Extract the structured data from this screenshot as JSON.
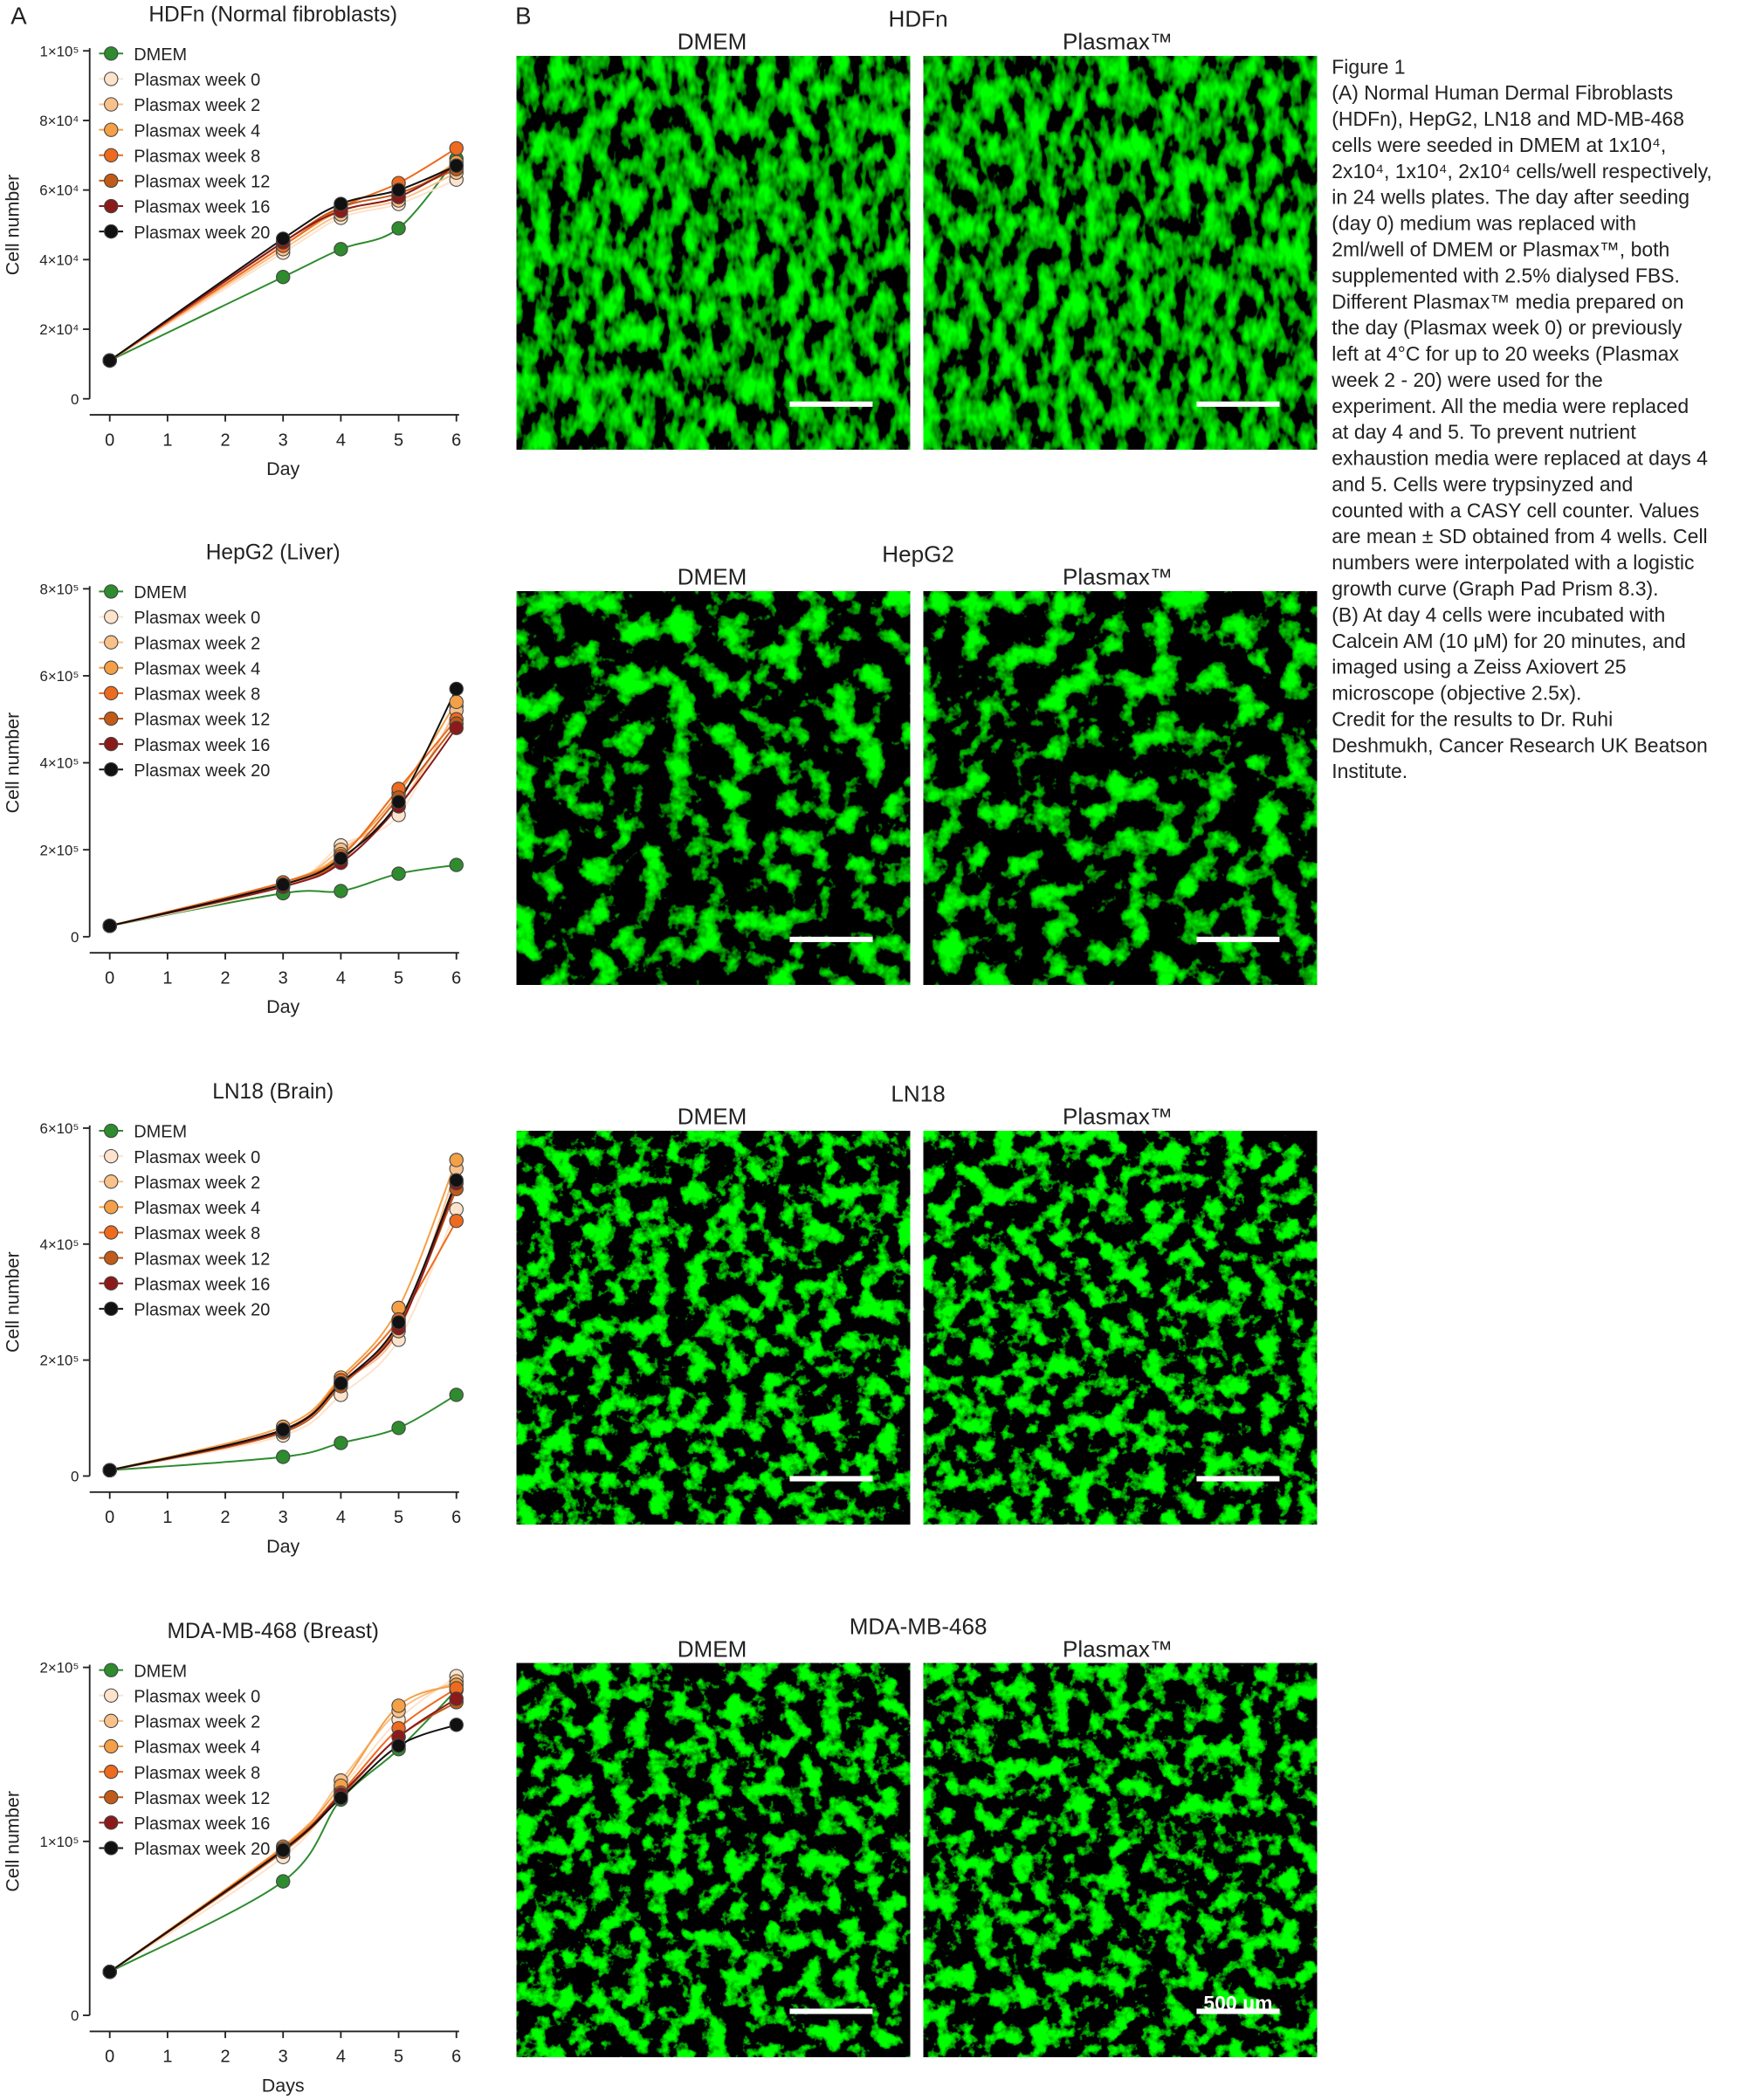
{
  "panels": {
    "a_label": "A",
    "b_label": "B"
  },
  "micrographs": [
    {
      "title": "HDFn",
      "left": "DMEM",
      "right": "Plasmax™"
    },
    {
      "title": "HepG2",
      "left": "DMEM",
      "right": "Plasmax™"
    },
    {
      "title": "LN18",
      "left": "DMEM",
      "right": "Plasmax™"
    },
    {
      "title": "MDA-MB-468",
      "left": "DMEM",
      "right": "Plasmax™"
    }
  ],
  "scale_bar_label": "500 μm",
  "caption": [
    "Figure 1",
    "(A) Normal Human Dermal Fibroblasts",
    "(HDFn), HepG2, LN18 and MD-MB-468",
    "cells were seeded in DMEM at 1x10⁴,",
    "2x10⁴, 1x10⁴, 2x10⁴ cells/well respectively,",
    "in 24 wells plates. The day after seeding",
    "(day 0) medium was replaced with",
    "2ml/well of DMEM or Plasmax™, both",
    "supplemented with 2.5% dialysed FBS.",
    "Different Plasmax™ media prepared on",
    "the day (Plasmax week 0) or  previously",
    "left at 4°C for up to 20 weeks (Plasmax",
    "week 2 - 20) were used for the",
    "experiment. All the media were replaced",
    "at day 4 and 5. To prevent nutrient",
    "exhaustion media were replaced at days 4",
    "and 5. Cells were trypsinyzed and",
    "counted with a CASY cell counter. Values",
    "are mean ± SD obtained from 4 wells. Cell",
    "numbers were interpolated with a logistic",
    "growth curve (Graph Pad Prism 8.3).",
    "(B) At day 4 cells were incubated with",
    "Calcein AM (10 μM) for 20 minutes, and",
    "imaged using a Zeiss Axiovert 25",
    "microscope (objective 2.5x).",
    "Credit for the results to Dr. Ruhi",
    "Deshmukh, Cancer Research UK Beatson",
    "Institute."
  ],
  "chart_data": [
    {
      "type": "line",
      "title": "HDFn (Normal fibroblasts)",
      "xlabel": "Day",
      "ylabel": "Cell number",
      "x": [
        0,
        3,
        4,
        5,
        6
      ],
      "xlim": [
        0,
        6
      ],
      "xticks": [
        0,
        1,
        2,
        3,
        4,
        5,
        6
      ],
      "ylim": [
        0,
        100000
      ],
      "yticks": [
        0,
        {
          "value": 20000,
          "label": "2×10⁴"
        },
        {
          "value": 40000,
          "label": "4×10⁴"
        },
        {
          "value": 60000,
          "label": "6×10⁴"
        },
        {
          "value": 80000,
          "label": "8×10⁴"
        },
        {
          "value": 100000,
          "label": "1×10⁵"
        }
      ],
      "series": [
        {
          "name": "DMEM",
          "color": "#2e8b2e",
          "values": [
            11000,
            35000,
            43000,
            49000,
            69000
          ]
        },
        {
          "name": "Plasmax week 0",
          "color": "#fde3cc",
          "values": [
            11000,
            42000,
            52000,
            56000,
            63000
          ]
        },
        {
          "name": "Plasmax week 2",
          "color": "#f9c18a",
          "values": [
            11000,
            43000,
            53000,
            57000,
            65000
          ]
        },
        {
          "name": "Plasmax week 4",
          "color": "#f4a046",
          "values": [
            11000,
            44000,
            54000,
            58000,
            68000
          ]
        },
        {
          "name": "Plasmax week 8",
          "color": "#ee6a1e",
          "values": [
            11000,
            44000,
            55000,
            62000,
            72000
          ]
        },
        {
          "name": "Plasmax week 12",
          "color": "#c25a18",
          "values": [
            11000,
            45000,
            55000,
            59000,
            66000
          ]
        },
        {
          "name": "Plasmax week 16",
          "color": "#8b1a1a",
          "values": [
            11000,
            45000,
            54000,
            58000,
            67000
          ]
        },
        {
          "name": "Plasmax week 20",
          "color": "#111111",
          "values": [
            11000,
            46000,
            56000,
            60000,
            67000
          ]
        }
      ]
    },
    {
      "type": "line",
      "title": "HepG2 (Liver)",
      "xlabel": "Day",
      "ylabel": "Cell number",
      "x": [
        0,
        3,
        4,
        5,
        6
      ],
      "xlim": [
        0,
        6
      ],
      "xticks": [
        0,
        1,
        2,
        3,
        4,
        5,
        6
      ],
      "ylim": [
        0,
        800000
      ],
      "yticks": [
        0,
        {
          "value": 200000,
          "label": "2×10⁵"
        },
        {
          "value": 400000,
          "label": "4×10⁵"
        },
        {
          "value": 600000,
          "label": "6×10⁵"
        },
        {
          "value": 800000,
          "label": "8×10⁵"
        }
      ],
      "series": [
        {
          "name": "DMEM",
          "color": "#2e8b2e",
          "values": [
            25000,
            100000,
            105000,
            145000,
            165000
          ]
        },
        {
          "name": "Plasmax week 0",
          "color": "#fde3cc",
          "values": [
            25000,
            115000,
            210000,
            280000,
            530000
          ]
        },
        {
          "name": "Plasmax week 2",
          "color": "#f9c18a",
          "values": [
            25000,
            120000,
            200000,
            300000,
            520000
          ]
        },
        {
          "name": "Plasmax week 4",
          "color": "#f4a046",
          "values": [
            25000,
            125000,
            190000,
            330000,
            540000
          ]
        },
        {
          "name": "Plasmax week 8",
          "color": "#ee6a1e",
          "values": [
            25000,
            125000,
            185000,
            340000,
            500000
          ]
        },
        {
          "name": "Plasmax week 12",
          "color": "#c25a18",
          "values": [
            25000,
            120000,
            175000,
            320000,
            490000
          ]
        },
        {
          "name": "Plasmax week 16",
          "color": "#8b1a1a",
          "values": [
            25000,
            115000,
            170000,
            300000,
            480000
          ]
        },
        {
          "name": "Plasmax week 20",
          "color": "#111111",
          "values": [
            25000,
            120000,
            180000,
            310000,
            570000
          ]
        }
      ]
    },
    {
      "type": "line",
      "title": "LN18 (Brain)",
      "xlabel": "Day",
      "ylabel": "Cell number",
      "x": [
        0,
        3,
        4,
        5,
        6
      ],
      "xlim": [
        0,
        6
      ],
      "xticks": [
        0,
        1,
        2,
        3,
        4,
        5,
        6
      ],
      "ylim": [
        0,
        600000
      ],
      "yticks": [
        0,
        {
          "value": 200000,
          "label": "2×10⁵"
        },
        {
          "value": 400000,
          "label": "4×10⁵"
        },
        {
          "value": 600000,
          "label": "6×10⁵"
        }
      ],
      "series": [
        {
          "name": "DMEM",
          "color": "#2e8b2e",
          "values": [
            10000,
            33000,
            57000,
            83000,
            140000
          ]
        },
        {
          "name": "Plasmax week 0",
          "color": "#fde3cc",
          "values": [
            10000,
            70000,
            140000,
            235000,
            460000
          ]
        },
        {
          "name": "Plasmax week 2",
          "color": "#f9c18a",
          "values": [
            10000,
            80000,
            160000,
            250000,
            530000
          ]
        },
        {
          "name": "Plasmax week 4",
          "color": "#f4a046",
          "values": [
            10000,
            85000,
            170000,
            290000,
            545000
          ]
        },
        {
          "name": "Plasmax week 8",
          "color": "#ee6a1e",
          "values": [
            10000,
            80000,
            165000,
            270000,
            440000
          ]
        },
        {
          "name": "Plasmax week 12",
          "color": "#c25a18",
          "values": [
            10000,
            75000,
            155000,
            260000,
            495000
          ]
        },
        {
          "name": "Plasmax week 16",
          "color": "#8b1a1a",
          "values": [
            10000,
            78000,
            160000,
            255000,
            505000
          ]
        },
        {
          "name": "Plasmax week 20",
          "color": "#111111",
          "values": [
            10000,
            80000,
            160000,
            265000,
            510000
          ]
        }
      ]
    },
    {
      "type": "line",
      "title": "MDA-MB-468 (Breast)",
      "xlabel": "Days",
      "ylabel": "Cell number",
      "x": [
        0,
        3,
        4,
        5,
        6
      ],
      "xlim": [
        0,
        6
      ],
      "xticks": [
        0,
        1,
        2,
        3,
        4,
        5,
        6
      ],
      "ylim": [
        0,
        200000
      ],
      "yticks": [
        0,
        {
          "value": 100000,
          "label": "1×10⁵"
        },
        {
          "value": 200000,
          "label": "2×10⁵"
        }
      ],
      "series": [
        {
          "name": "DMEM",
          "color": "#2e8b2e",
          "values": [
            25000,
            77000,
            124000,
            153000,
            187000
          ]
        },
        {
          "name": "Plasmax week 0",
          "color": "#fde3cc",
          "values": [
            25000,
            91000,
            130000,
            170000,
            195000
          ]
        },
        {
          "name": "Plasmax week 2",
          "color": "#f9c18a",
          "values": [
            25000,
            95000,
            135000,
            175000,
            192000
          ]
        },
        {
          "name": "Plasmax week 4",
          "color": "#f4a046",
          "values": [
            25000,
            97000,
            132000,
            178000,
            190000
          ]
        },
        {
          "name": "Plasmax week 8",
          "color": "#ee6a1e",
          "values": [
            25000,
            96000,
            128000,
            165000,
            188000
          ]
        },
        {
          "name": "Plasmax week 12",
          "color": "#c25a18",
          "values": [
            25000,
            94000,
            126000,
            160000,
            180000
          ]
        },
        {
          "name": "Plasmax week 16",
          "color": "#8b1a1a",
          "values": [
            25000,
            95000,
            127000,
            160000,
            182000
          ]
        },
        {
          "name": "Plasmax week 20",
          "color": "#111111",
          "values": [
            25000,
            95000,
            125000,
            155000,
            167000
          ]
        }
      ]
    }
  ]
}
